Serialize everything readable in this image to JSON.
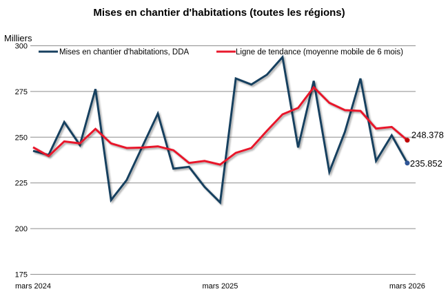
{
  "chart_data": {
    "type": "line",
    "title": "Mises en chantier d'habitations (toutes les régions)",
    "ylabel": "Milliers",
    "xlabel": "",
    "ylim": [
      175,
      300
    ],
    "yticks": [
      175,
      200,
      225,
      250,
      275,
      300
    ],
    "x_tick_labels": [
      "mars 2024",
      "mars 2025",
      "mars 2026"
    ],
    "x": [
      "2024-03",
      "2024-04",
      "2024-05",
      "2024-06",
      "2024-07",
      "2024-08",
      "2024-09",
      "2024-10",
      "2024-11",
      "2024-12",
      "2025-01",
      "2025-02",
      "2025-03",
      "2025-04",
      "2025-05",
      "2025-06",
      "2025-07",
      "2025-08",
      "2025-09",
      "2025-10",
      "2025-11",
      "2025-12",
      "2026-01",
      "2026-02",
      "2026-03"
    ],
    "grid": true,
    "legend_position": "top",
    "series": [
      {
        "name": "Mises en chantier d'habitations, DDA",
        "color": "#173f5f",
        "values": [
          242.5,
          240.3,
          258.3,
          245.7,
          276.3,
          215.6,
          226.5,
          244.7,
          262.9,
          232.8,
          233.8,
          222.8,
          214.3,
          282.1,
          278.8,
          284.2,
          293.8,
          244.4,
          280.8,
          231.0,
          252.9,
          282.1,
          237.0,
          251.0,
          235.852
        ],
        "end_label": "235.852"
      },
      {
        "name": "Ligne de tendance (moyenne mobile de 6 mois)",
        "color": "#e8192c",
        "values": [
          244.5,
          239.7,
          247.7,
          246.6,
          254.5,
          246.6,
          244.1,
          244.3,
          245.0,
          242.9,
          235.9,
          237.0,
          235.0,
          241.4,
          244.1,
          253.5,
          262.5,
          266.0,
          277.3,
          268.8,
          264.8,
          264.4,
          254.7,
          255.6,
          248.378
        ],
        "end_label": "248.378"
      }
    ]
  }
}
